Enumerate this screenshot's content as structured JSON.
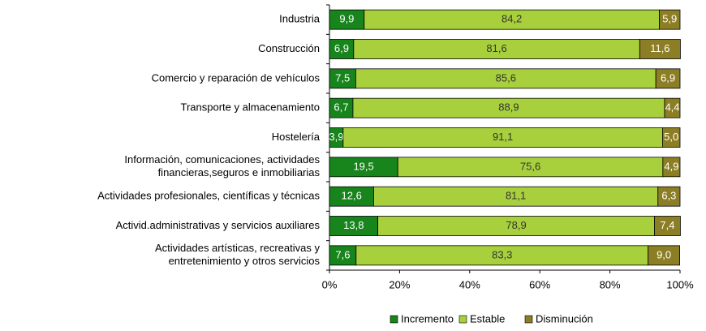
{
  "chart_data": {
    "type": "stacked_bar_horizontal",
    "categories": [
      "Industria",
      "Construcción",
      "Comercio y reparación de vehículos",
      "Transporte y almacenamiento",
      "Hostelería",
      "Información, comunicaciones, actividades\nfinancieras,seguros e inmobiliarias",
      "Actividades profesionales, científicas y técnicas",
      "Activid.administrativas y servicios auxiliares",
      "Actividades artísticas, recreativas y\nentretenimiento y otros servicios"
    ],
    "series": [
      {
        "name": "Incremento",
        "color": "#17841c",
        "values": [
          9.9,
          6.9,
          7.5,
          6.7,
          3.9,
          19.5,
          12.6,
          13.8,
          7.6
        ],
        "value_labels": [
          "9,9",
          "6,9",
          "7,5",
          "6,7",
          "3,9",
          "19,5",
          "12,6",
          "13,8",
          "7,6"
        ]
      },
      {
        "name": "Estable",
        "color": "#a8d03c",
        "values": [
          84.2,
          81.6,
          85.6,
          88.9,
          91.1,
          75.6,
          81.1,
          78.9,
          83.3
        ],
        "value_labels": [
          "84,2",
          "81,6",
          "85,6",
          "88,9",
          "91,1",
          "75,6",
          "81,1",
          "78,9",
          "83,3"
        ]
      },
      {
        "name": "Disminución",
        "color": "#8c7e24",
        "values": [
          5.9,
          11.6,
          6.9,
          4.4,
          5.0,
          4.9,
          6.3,
          7.4,
          9.0
        ],
        "value_labels": [
          "5,9",
          "11,6",
          "6,9",
          "4,4",
          "5,0",
          "4,9",
          "6,3",
          "7,4",
          "9,0"
        ]
      }
    ],
    "xlim": [
      0,
      100
    ],
    "xticks": [
      {
        "value": 0,
        "label": "0%"
      },
      {
        "value": 20,
        "label": "20%"
      },
      {
        "value": 40,
        "label": "40%"
      },
      {
        "value": 60,
        "label": "60%"
      },
      {
        "value": 80,
        "label": "80%"
      },
      {
        "value": 100,
        "label": "100%"
      }
    ],
    "legend": "bottom"
  }
}
